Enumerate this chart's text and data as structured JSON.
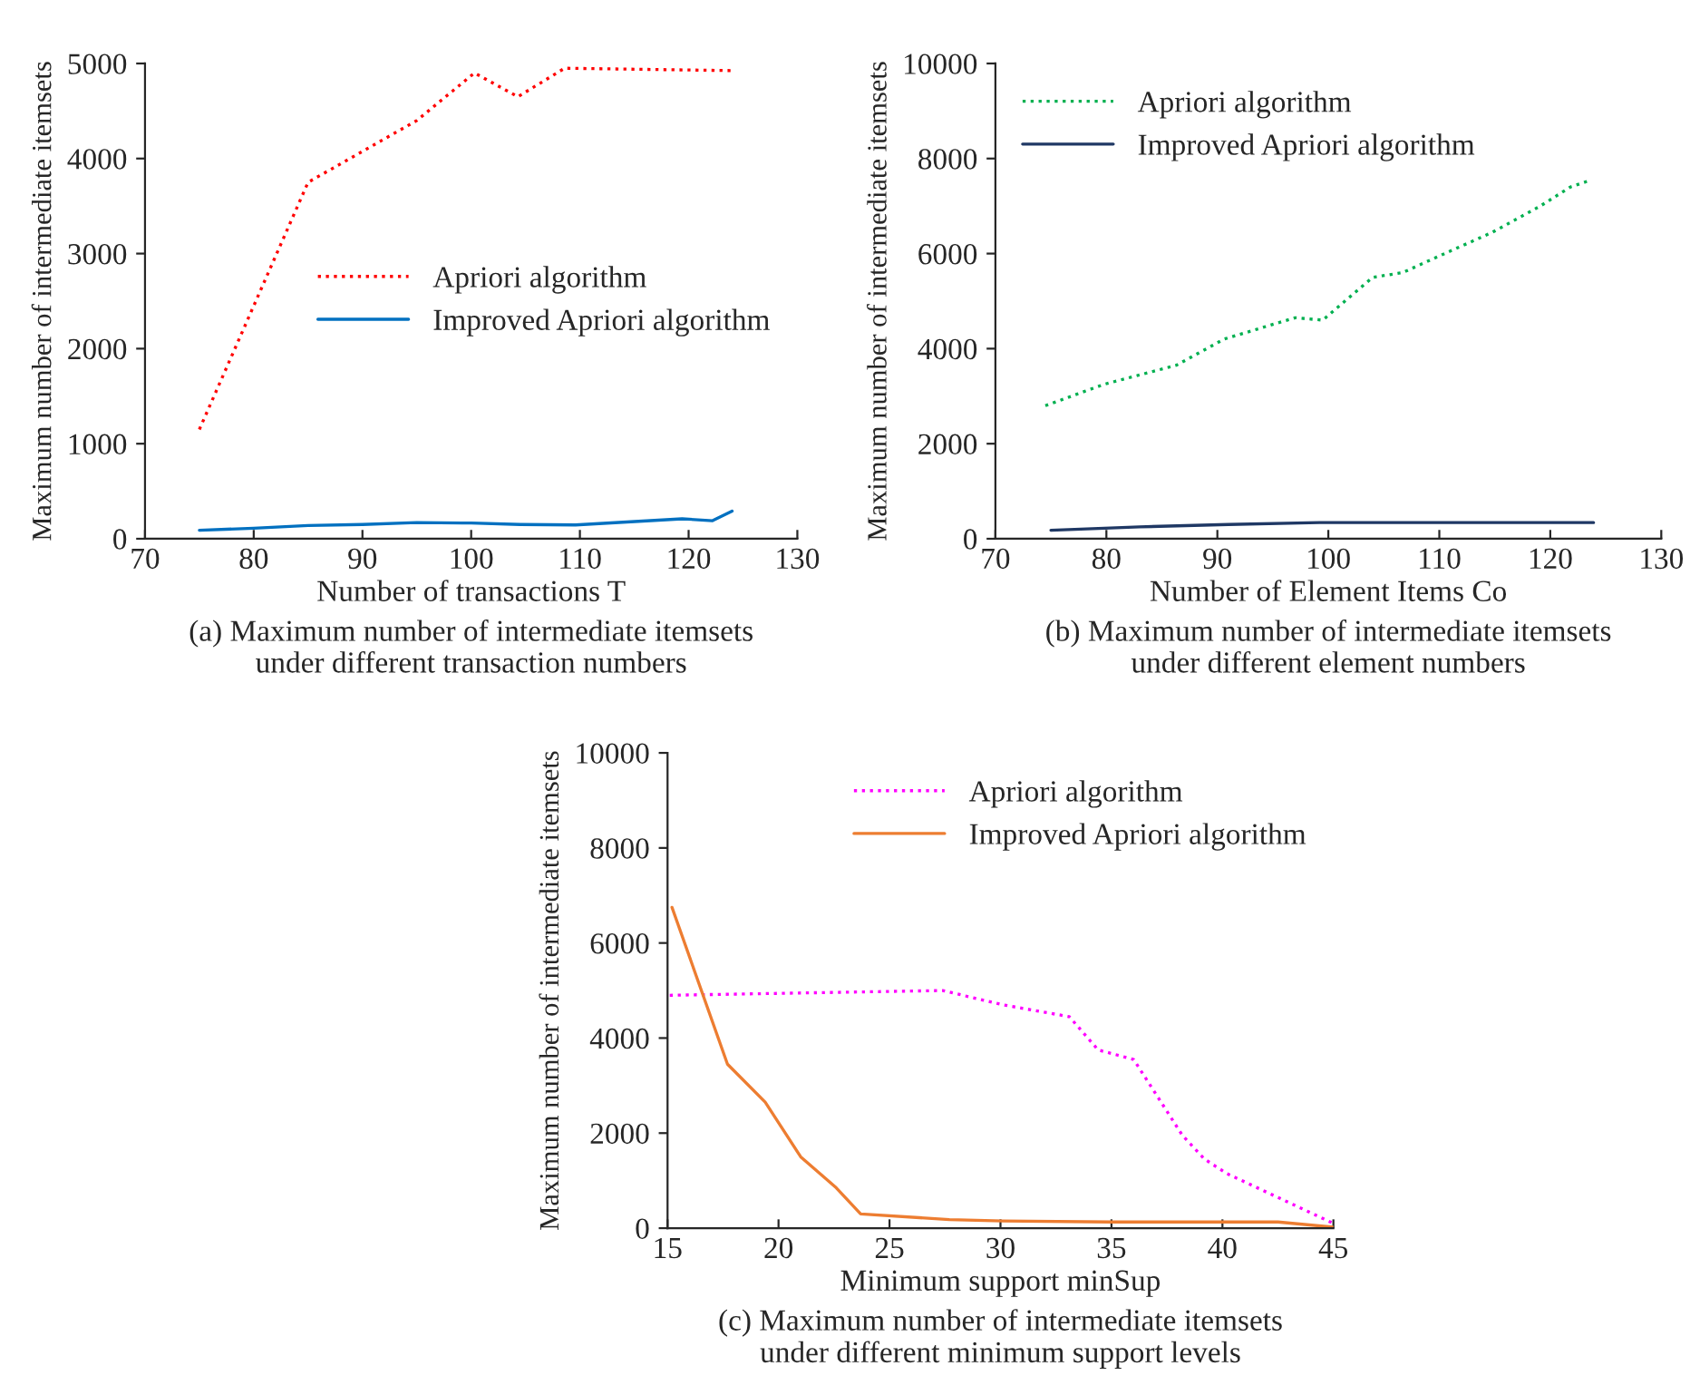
{
  "chart_data": [
    {
      "type": "line",
      "xlabel": "Number of transactions T",
      "ylabel": "Maximum number of intermediate itemsets",
      "xlim": [
        70,
        130
      ],
      "xticks": [
        70,
        80,
        90,
        100,
        110,
        120,
        130
      ],
      "ylim": [
        0,
        5000
      ],
      "yticks": [
        0,
        1000,
        2000,
        3000,
        4000,
        5000
      ],
      "grid": false,
      "legend": "right",
      "marker": "none",
      "annotations": [
        "(a) Maximum number of intermediate itemsets\nunder different transaction numbers"
      ],
      "series": [
        {
          "name": "Apriori algorithm",
          "color": "#ff0000",
          "line_style": "dotted",
          "x": [
            75,
            85,
            95,
            100.3,
            104.3,
            108.6,
            124
          ],
          "values": [
            1150,
            3750,
            4400,
            4900,
            4650,
            4950,
            4925
          ]
        },
        {
          "name": "Improved Apriori algorithm",
          "color": "#0070c0",
          "line_style": "solid",
          "x": [
            75,
            80,
            85,
            90,
            95,
            100,
            104.5,
            109.6,
            119.4,
            122.2,
            124
          ],
          "values": [
            90,
            110,
            140,
            150,
            170,
            165,
            150,
            145,
            210,
            190,
            290
          ]
        }
      ]
    },
    {
      "type": "line",
      "xlabel": "Number of Element Items Co",
      "ylabel": "Maximum number of intermediate itemsets",
      "xlim": [
        70,
        130
      ],
      "xticks": [
        70,
        80,
        90,
        100,
        110,
        120,
        130
      ],
      "ylim": [
        0,
        10000
      ],
      "yticks": [
        0,
        2000,
        4000,
        6000,
        8000,
        10000
      ],
      "grid": false,
      "legend": "upper left",
      "marker": "none",
      "annotations": [
        "(b) Maximum number of intermediate itemsets\nunder different element numbers"
      ],
      "series": [
        {
          "name": "Apriori algorithm",
          "color": "#00b050",
          "line_style": "dotted",
          "x": [
            74.5,
            79.8,
            86.3,
            90.6,
            97,
            99.5,
            104,
            106.7,
            110,
            114.8,
            119.1,
            121.8,
            123.7
          ],
          "values": [
            2800,
            3250,
            3650,
            4200,
            4650,
            4600,
            5500,
            5600,
            5950,
            6450,
            7000,
            7400,
            7550
          ]
        },
        {
          "name": "Improved Apriori algorithm",
          "color": "#1f3864",
          "line_style": "solid",
          "x": [
            75,
            83,
            91,
            99.2,
            123.9
          ],
          "values": [
            180,
            250,
            300,
            340,
            340
          ]
        }
      ]
    },
    {
      "type": "line",
      "xlabel": "Minimum support minSup",
      "ylabel": "Maximum number of intermediate itemsets",
      "xlim": [
        15,
        45
      ],
      "xticks": [
        15,
        20,
        25,
        30,
        35,
        40,
        45
      ],
      "ylim": [
        0,
        10000
      ],
      "yticks": [
        0,
        2000,
        4000,
        6000,
        8000,
        10000
      ],
      "grid": false,
      "legend": "upper right",
      "marker": "none",
      "annotations": [
        "(c) Maximum number of intermediate itemsets\nunder different minimum support levels"
      ],
      "series": [
        {
          "name": "Apriori algorithm",
          "color": "#ff00ff",
          "line_style": "dotted",
          "x": [
            15.1,
            27.4,
            30.1,
            33.1,
            34.4,
            36,
            38.2,
            39.2,
            40.2,
            45
          ],
          "values": [
            4900,
            5000,
            4700,
            4450,
            3750,
            3550,
            1950,
            1450,
            1150,
            100
          ]
        },
        {
          "name": "Improved Apriori algorithm",
          "color": "#ed7d31",
          "line_style": "solid",
          "x": [
            15.2,
            17.7,
            19.4,
            21,
            22.6,
            23.7,
            27.7,
            30.1,
            35,
            42.5,
            45
          ],
          "values": [
            6750,
            3450,
            2650,
            1500,
            850,
            300,
            180,
            150,
            130,
            130,
            20
          ]
        }
      ]
    }
  ]
}
